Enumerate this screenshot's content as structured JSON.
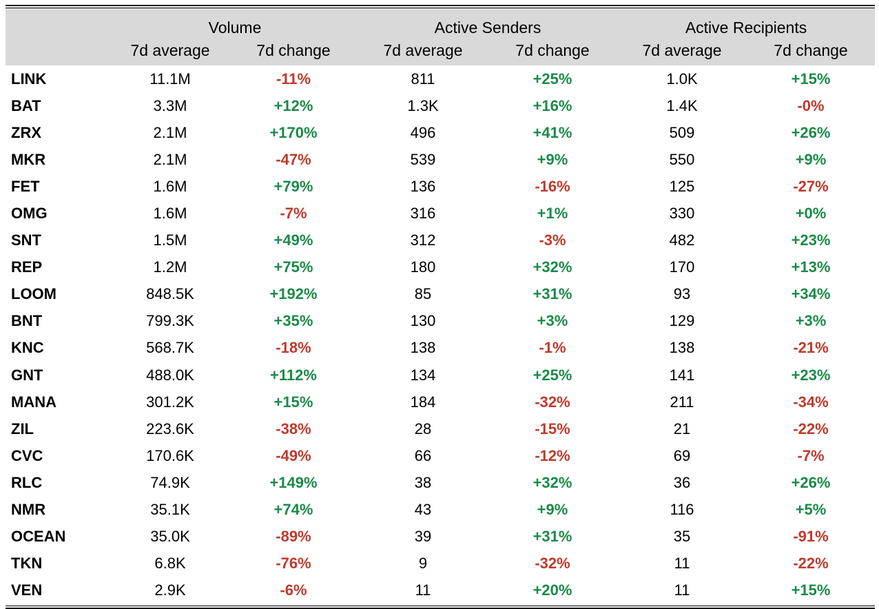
{
  "chart_data": {
    "type": "table",
    "groups": [
      "Volume",
      "Active Senders",
      "Active Recipients"
    ],
    "subheaders": [
      "7d average",
      "7d change",
      "7d average",
      "7d change",
      "7d average",
      "7d change"
    ],
    "rows": [
      {
        "token": "LINK",
        "vol_avg": "11.1M",
        "vol_chg": "-11%",
        "snd_avg": "811",
        "snd_chg": "+25%",
        "rcp_avg": "1.0K",
        "rcp_chg": "+15%"
      },
      {
        "token": "BAT",
        "vol_avg": "3.3M",
        "vol_chg": "+12%",
        "snd_avg": "1.3K",
        "snd_chg": "+16%",
        "rcp_avg": "1.4K",
        "rcp_chg": "-0%"
      },
      {
        "token": "ZRX",
        "vol_avg": "2.1M",
        "vol_chg": "+170%",
        "snd_avg": "496",
        "snd_chg": "+41%",
        "rcp_avg": "509",
        "rcp_chg": "+26%"
      },
      {
        "token": "MKR",
        "vol_avg": "2.1M",
        "vol_chg": "-47%",
        "snd_avg": "539",
        "snd_chg": "+9%",
        "rcp_avg": "550",
        "rcp_chg": "+9%"
      },
      {
        "token": "FET",
        "vol_avg": "1.6M",
        "vol_chg": "+79%",
        "snd_avg": "136",
        "snd_chg": "-16%",
        "rcp_avg": "125",
        "rcp_chg": "-27%"
      },
      {
        "token": "OMG",
        "vol_avg": "1.6M",
        "vol_chg": "-7%",
        "snd_avg": "316",
        "snd_chg": "+1%",
        "rcp_avg": "330",
        "rcp_chg": "+0%"
      },
      {
        "token": "SNT",
        "vol_avg": "1.5M",
        "vol_chg": "+49%",
        "snd_avg": "312",
        "snd_chg": "-3%",
        "rcp_avg": "482",
        "rcp_chg": "+23%"
      },
      {
        "token": "REP",
        "vol_avg": "1.2M",
        "vol_chg": "+75%",
        "snd_avg": "180",
        "snd_chg": "+32%",
        "rcp_avg": "170",
        "rcp_chg": "+13%"
      },
      {
        "token": "LOOM",
        "vol_avg": "848.5K",
        "vol_chg": "+192%",
        "snd_avg": "85",
        "snd_chg": "+31%",
        "rcp_avg": "93",
        "rcp_chg": "+34%"
      },
      {
        "token": "BNT",
        "vol_avg": "799.3K",
        "vol_chg": "+35%",
        "snd_avg": "130",
        "snd_chg": "+3%",
        "rcp_avg": "129",
        "rcp_chg": "+3%"
      },
      {
        "token": "KNC",
        "vol_avg": "568.7K",
        "vol_chg": "-18%",
        "snd_avg": "138",
        "snd_chg": "-1%",
        "rcp_avg": "138",
        "rcp_chg": "-21%"
      },
      {
        "token": "GNT",
        "vol_avg": "488.0K",
        "vol_chg": "+112%",
        "snd_avg": "134",
        "snd_chg": "+25%",
        "rcp_avg": "141",
        "rcp_chg": "+23%"
      },
      {
        "token": "MANA",
        "vol_avg": "301.2K",
        "vol_chg": "+15%",
        "snd_avg": "184",
        "snd_chg": "-32%",
        "rcp_avg": "211",
        "rcp_chg": "-34%"
      },
      {
        "token": "ZIL",
        "vol_avg": "223.6K",
        "vol_chg": "-38%",
        "snd_avg": "28",
        "snd_chg": "-15%",
        "rcp_avg": "21",
        "rcp_chg": "-22%"
      },
      {
        "token": "CVC",
        "vol_avg": "170.6K",
        "vol_chg": "-49%",
        "snd_avg": "66",
        "snd_chg": "-12%",
        "rcp_avg": "69",
        "rcp_chg": "-7%"
      },
      {
        "token": "RLC",
        "vol_avg": "74.9K",
        "vol_chg": "+149%",
        "snd_avg": "38",
        "snd_chg": "+32%",
        "rcp_avg": "36",
        "rcp_chg": "+26%"
      },
      {
        "token": "NMR",
        "vol_avg": "35.1K",
        "vol_chg": "+74%",
        "snd_avg": "43",
        "snd_chg": "+9%",
        "rcp_avg": "116",
        "rcp_chg": "+5%"
      },
      {
        "token": "OCEAN",
        "vol_avg": "35.0K",
        "vol_chg": "-89%",
        "snd_avg": "39",
        "snd_chg": "+31%",
        "rcp_avg": "35",
        "rcp_chg": "-91%"
      },
      {
        "token": "TKN",
        "vol_avg": "6.8K",
        "vol_chg": "-76%",
        "snd_avg": "9",
        "snd_chg": "-32%",
        "rcp_avg": "11",
        "rcp_chg": "-22%"
      },
      {
        "token": "VEN",
        "vol_avg": "2.9K",
        "vol_chg": "-6%",
        "snd_avg": "11",
        "snd_chg": "+20%",
        "rcp_avg": "11",
        "rcp_chg": "+15%"
      }
    ],
    "colors": {
      "positive": "#1a8a48",
      "negative": "#c0392b",
      "header_bg": "#d9d9d9"
    }
  }
}
